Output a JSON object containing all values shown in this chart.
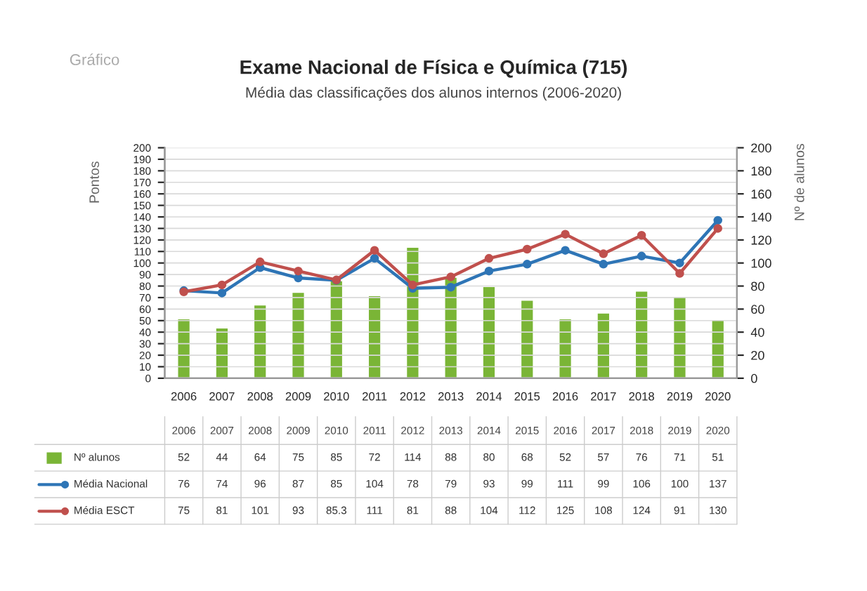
{
  "chart_data": {
    "type": "bar",
    "title": "Exame Nacional de Física e Química (715)",
    "subtitle": "Média das classificações dos alunos internos (2006-2020)",
    "ylabel": "Pontos",
    "y2label": "Nº de alunos",
    "annotations": [
      "Gráfico"
    ],
    "categories": [
      "2006",
      "2007",
      "2008",
      "2009",
      "2010",
      "2011",
      "2012",
      "2013",
      "2014",
      "2015",
      "2016",
      "2017",
      "2018",
      "2019",
      "2020"
    ],
    "series": [
      {
        "name": "Nº alunos",
        "axis": "y2",
        "color": "#7ab536",
        "values": [
          52,
          44,
          64,
          75,
          85,
          72,
          114,
          88,
          80,
          68,
          52,
          57,
          76,
          71,
          51
        ]
      },
      {
        "name": "Média Nacional",
        "type": "line",
        "color": "#2e75b6",
        "values": [
          76,
          74,
          96,
          87,
          85,
          104,
          78,
          79,
          93,
          99,
          111,
          99,
          106,
          100,
          137
        ]
      },
      {
        "name": "Média ESCT",
        "type": "line",
        "color": "#c0504d",
        "values": [
          75,
          81,
          101,
          93,
          85.3,
          111,
          81,
          88,
          104,
          112,
          125,
          108,
          124,
          91,
          130
        ]
      }
    ],
    "ylim": [
      0,
      200
    ],
    "yticks": [
      0,
      10,
      20,
      30,
      40,
      50,
      60,
      70,
      80,
      90,
      100,
      110,
      120,
      130,
      140,
      150,
      160,
      170,
      180,
      190,
      200
    ],
    "y2lim": [
      0,
      200
    ],
    "y2ticks": [
      0,
      20,
      40,
      60,
      80,
      100,
      120,
      140,
      160,
      180,
      200
    ],
    "grid": "y",
    "marker": "circle",
    "line_style": "solid",
    "data_labels": true,
    "legend": "bottom"
  }
}
